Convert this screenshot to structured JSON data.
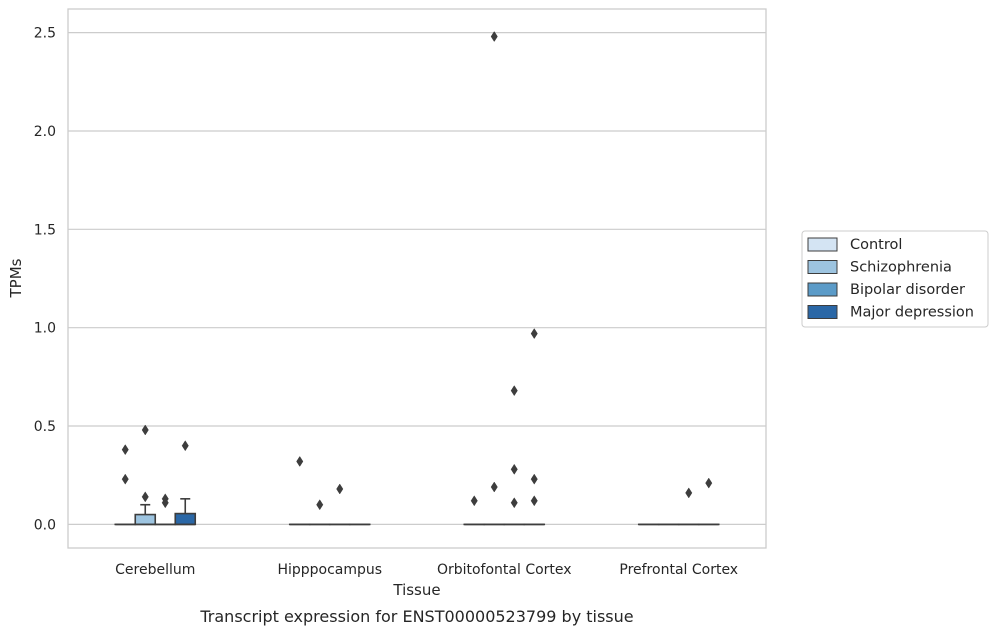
{
  "caption": "Transcript expression for ENST00000523799 by tissue",
  "chart_data": {
    "type": "box",
    "xlabel": "Tissue",
    "ylabel": "TPMs",
    "ylim": [
      -0.12,
      2.62
    ],
    "yticks": [
      0.0,
      0.5,
      1.0,
      1.5,
      2.0,
      2.5
    ],
    "ytick_labels": [
      "0.0",
      "0.5",
      "1.0",
      "1.5",
      "2.0",
      "2.5"
    ],
    "grid": "horizontal",
    "legend_position": "right",
    "categories": [
      "Cerebellum",
      "Hipppocampus",
      "Orbitofontal Cortex",
      "Prefrontal Cortex"
    ],
    "series": [
      {
        "name": "Control",
        "color": "#d4e4f3"
      },
      {
        "name": "Schizophrenia",
        "color": "#9dc4e0"
      },
      {
        "name": "Bipolar disorder",
        "color": "#5b9bc8"
      },
      {
        "name": "Major depression",
        "color": "#2a67a6"
      }
    ],
    "boxes": [
      {
        "category": 0,
        "series": 0,
        "q1": 0,
        "median": 0,
        "q3": 0,
        "whisker_low": 0,
        "whisker_high": 0,
        "outliers": [
          0.38,
          0.23
        ]
      },
      {
        "category": 0,
        "series": 1,
        "q1": 0,
        "median": 0,
        "q3": 0.05,
        "whisker_low": 0,
        "whisker_high": 0.1,
        "outliers": [
          0.48,
          0.14
        ]
      },
      {
        "category": 0,
        "series": 2,
        "q1": 0,
        "median": 0,
        "q3": 0,
        "whisker_low": 0,
        "whisker_high": 0,
        "outliers": [
          0.13,
          0.11
        ]
      },
      {
        "category": 0,
        "series": 3,
        "q1": 0,
        "median": 0,
        "q3": 0.055,
        "whisker_low": 0,
        "whisker_high": 0.13,
        "outliers": [
          0.4
        ]
      },
      {
        "category": 1,
        "series": 0,
        "q1": 0,
        "median": 0,
        "q3": 0,
        "whisker_low": 0,
        "whisker_high": 0,
        "outliers": [
          0.32
        ]
      },
      {
        "category": 1,
        "series": 1,
        "q1": 0,
        "median": 0,
        "q3": 0,
        "whisker_low": 0,
        "whisker_high": 0,
        "outliers": [
          0.1
        ]
      },
      {
        "category": 1,
        "series": 2,
        "q1": 0,
        "median": 0,
        "q3": 0,
        "whisker_low": 0,
        "whisker_high": 0,
        "outliers": [
          0.18
        ]
      },
      {
        "category": 1,
        "series": 3,
        "q1": 0,
        "median": 0,
        "q3": 0,
        "whisker_low": 0,
        "whisker_high": 0,
        "outliers": []
      },
      {
        "category": 2,
        "series": 0,
        "q1": 0,
        "median": 0,
        "q3": 0,
        "whisker_low": 0,
        "whisker_high": 0,
        "outliers": [
          0.12
        ]
      },
      {
        "category": 2,
        "series": 1,
        "q1": 0,
        "median": 0,
        "q3": 0,
        "whisker_low": 0,
        "whisker_high": 0,
        "outliers": [
          2.48,
          0.19
        ]
      },
      {
        "category": 2,
        "series": 2,
        "q1": 0,
        "median": 0,
        "q3": 0,
        "whisker_low": 0,
        "whisker_high": 0,
        "outliers": [
          0.68,
          0.28,
          0.11
        ]
      },
      {
        "category": 2,
        "series": 3,
        "q1": 0,
        "median": 0,
        "q3": 0,
        "whisker_low": 0,
        "whisker_high": 0,
        "outliers": [
          0.97,
          0.23,
          0.12
        ]
      },
      {
        "category": 3,
        "series": 0,
        "q1": 0,
        "median": 0,
        "q3": 0,
        "whisker_low": 0,
        "whisker_high": 0,
        "outliers": []
      },
      {
        "category": 3,
        "series": 1,
        "q1": 0,
        "median": 0,
        "q3": 0,
        "whisker_low": 0,
        "whisker_high": 0,
        "outliers": []
      },
      {
        "category": 3,
        "series": 2,
        "q1": 0,
        "median": 0,
        "q3": 0,
        "whisker_low": 0,
        "whisker_high": 0,
        "outliers": [
          0.16
        ]
      },
      {
        "category": 3,
        "series": 3,
        "q1": 0,
        "median": 0,
        "q3": 0,
        "whisker_low": 0,
        "whisker_high": 0,
        "outliers": [
          0.21
        ]
      }
    ]
  }
}
